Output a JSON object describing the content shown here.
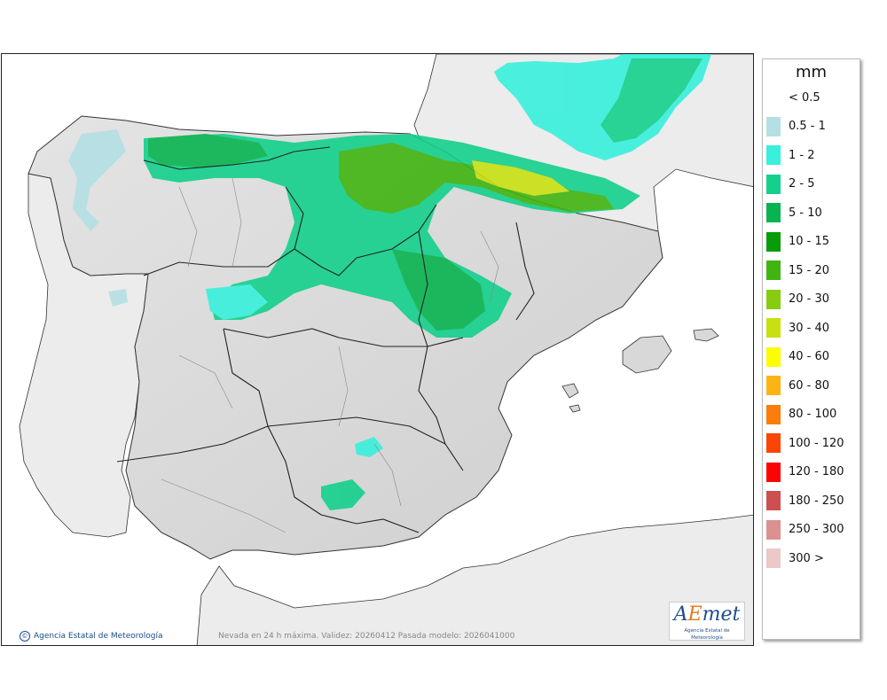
{
  "legend": {
    "title": "mm",
    "items": [
      {
        "label": "< 0.5",
        "color": "#ffffff"
      },
      {
        "label": "0.5 - 1",
        "color": "#b4e0e4"
      },
      {
        "label": "1 - 2",
        "color": "#38f0dc"
      },
      {
        "label": "2 - 5",
        "color": "#14d08c"
      },
      {
        "label": "5 - 10",
        "color": "#08b450"
      },
      {
        "label": "10 - 15",
        "color": "#089c08"
      },
      {
        "label": "15 - 20",
        "color": "#40b410"
      },
      {
        "label": "20 - 30",
        "color": "#88cc10"
      },
      {
        "label": "30 - 40",
        "color": "#c8e010"
      },
      {
        "label": "40 - 60",
        "color": "#fcfc04"
      },
      {
        "label": "60 - 80",
        "color": "#fcb414"
      },
      {
        "label": "80 - 100",
        "color": "#fc7c0c"
      },
      {
        "label": "100 - 120",
        "color": "#fc4404"
      },
      {
        "label": "120 - 180",
        "color": "#fc0404"
      },
      {
        "label": "180 - 250",
        "color": "#cc5050"
      },
      {
        "label": "250 - 300",
        "color": "#dc9090"
      },
      {
        "label": "300 >",
        "color": "#ecc8c8"
      }
    ]
  },
  "caption": "Nevada en 24 h máxima. Validez: 20260412 Pasada modelo: 2026041000",
  "credit": "Agencia Estatal de Meteorología",
  "logo": {
    "mark_a": "A",
    "mark_e": "E",
    "mark_rest": "met",
    "sub": "Agencia Estatal de Meteorología"
  },
  "colors": {
    "sea": "#ffffff",
    "land": "#d8d8d8",
    "foreign_land": "#ececec",
    "border": "#222222"
  }
}
